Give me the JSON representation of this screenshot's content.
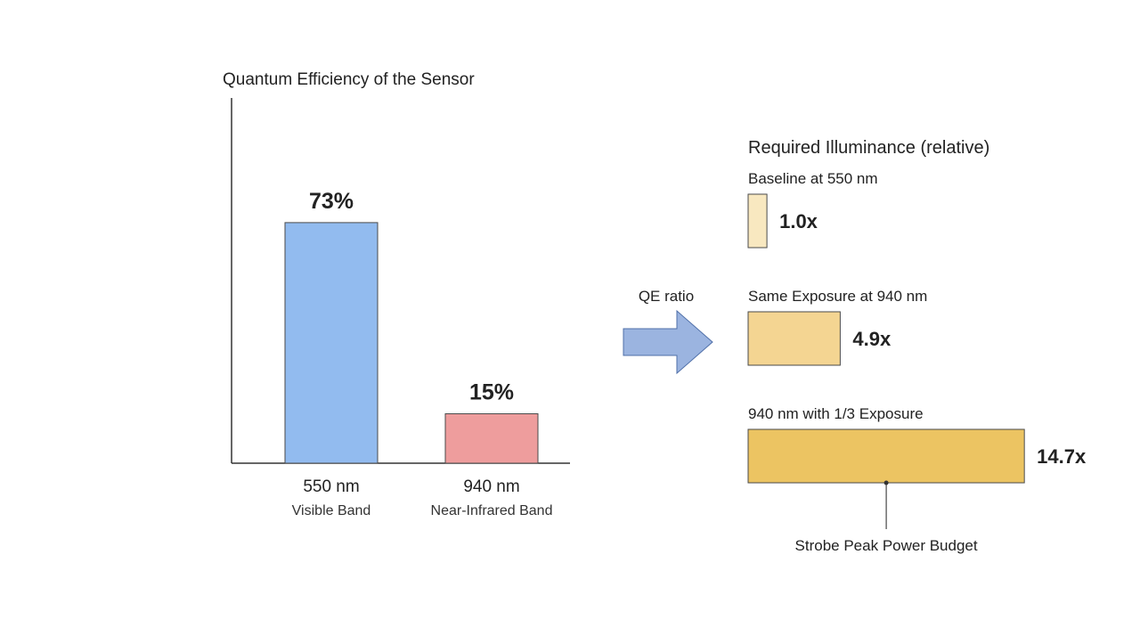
{
  "chart_data": [
    {
      "type": "bar",
      "title": "Quantum Efficiency of the Sensor",
      "xlabel": "",
      "ylabel": "",
      "unit": "%",
      "ylim": [
        0,
        100
      ],
      "grid": false,
      "categories": [
        "550 nm",
        "940 nm"
      ],
      "sublabels": [
        "Visible Band",
        "Near-Infrared Band"
      ],
      "values": [
        73,
        15
      ],
      "value_labels": [
        "73%",
        "15%"
      ],
      "colors": [
        "#92bbef",
        "#ee9d9d"
      ]
    },
    {
      "type": "bar",
      "orientation": "horizontal",
      "title": "Required Illuminance (relative)",
      "categories": [
        "Baseline at 550 nm",
        "Same Exposure at 940 nm",
        "940 nm with 1/3 Exposure"
      ],
      "values": [
        1.0,
        4.9,
        14.7
      ],
      "value_labels": [
        "1.0x",
        "4.9x",
        "14.7x"
      ],
      "colors": [
        "#f8e8c0",
        "#f4d592",
        "#ecc462"
      ],
      "annotation": "Strobe Peak Power Budget"
    }
  ],
  "arrow": {
    "label": "QE ratio",
    "color": "#9bb4e0"
  }
}
